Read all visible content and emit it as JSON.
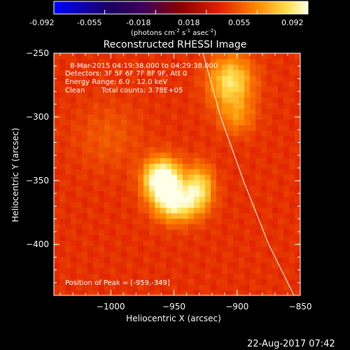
{
  "colorbar": {
    "ticks": [
      "-0.092",
      "-0.055",
      "-0.018",
      "0.018",
      "0.055",
      "0.092"
    ],
    "units_main": "(photons cm",
    "units_exp1": "-2",
    "units_mid": " s",
    "units_exp2": "-1",
    "units_end": " asec",
    "units_exp3": "-2",
    "units_close": ")"
  },
  "title": "Reconstructed RHESSI Image",
  "info": {
    "line1": "8-Mar-2015 04:19:38.000 to 04:29:38.000",
    "line2": "Detectors: 3F 5F 6F 7F 8F 9F, Att 0",
    "line3": "Energy Range: 6.0 - 12.0 keV",
    "line4_a": "Clean",
    "line4_b": "Total counts: 3.78E+05",
    "peak": "Position of Peak = [-959,-349]"
  },
  "footer_date": "22-Aug-2017 07:42",
  "chart_data": {
    "type": "heatmap",
    "title": "Reconstructed RHESSI Image",
    "xlabel": "Heliocentric X (arcsec)",
    "ylabel": "Heliocentric Y (arcsec)",
    "xlim": [
      -1045,
      -850
    ],
    "ylim": [
      -440,
      -250
    ],
    "x_ticks": [
      -1000,
      -950,
      -900,
      -850
    ],
    "x_tick_labels": [
      "−1000",
      "−950",
      "−900",
      "−850"
    ],
    "y_ticks": [
      -250,
      -300,
      -350,
      -400
    ],
    "y_tick_labels": [
      "−250",
      "−300",
      "−350",
      "−400"
    ],
    "colorbar_range": [
      -0.092,
      0.092
    ],
    "colormap": "hot",
    "peak": [
      -959,
      -349
    ],
    "blobs": [
      {
        "x": -959,
        "y": -349,
        "amp": 0.092,
        "sx": 10,
        "sy": 11
      },
      {
        "x": -948,
        "y": -368,
        "amp": 0.062,
        "sx": 12,
        "sy": 10
      },
      {
        "x": -930,
        "y": -355,
        "amp": 0.055,
        "sx": 8,
        "sy": 12
      },
      {
        "x": -905,
        "y": -272,
        "amp": 0.058,
        "sx": 12,
        "sy": 14
      },
      {
        "x": -900,
        "y": -300,
        "amp": 0.03,
        "sx": 10,
        "sy": 10
      },
      {
        "x": -1002,
        "y": -315,
        "amp": 0.02,
        "sx": 18,
        "sy": 18
      }
    ],
    "background": 0.032,
    "limb_curve_x_at_y": [
      {
        "y": -250,
        "x": -927
      },
      {
        "y": -300,
        "x": -913
      },
      {
        "y": -350,
        "x": -895
      },
      {
        "y": -400,
        "x": -875
      },
      {
        "y": -440,
        "x": -855
      }
    ]
  }
}
